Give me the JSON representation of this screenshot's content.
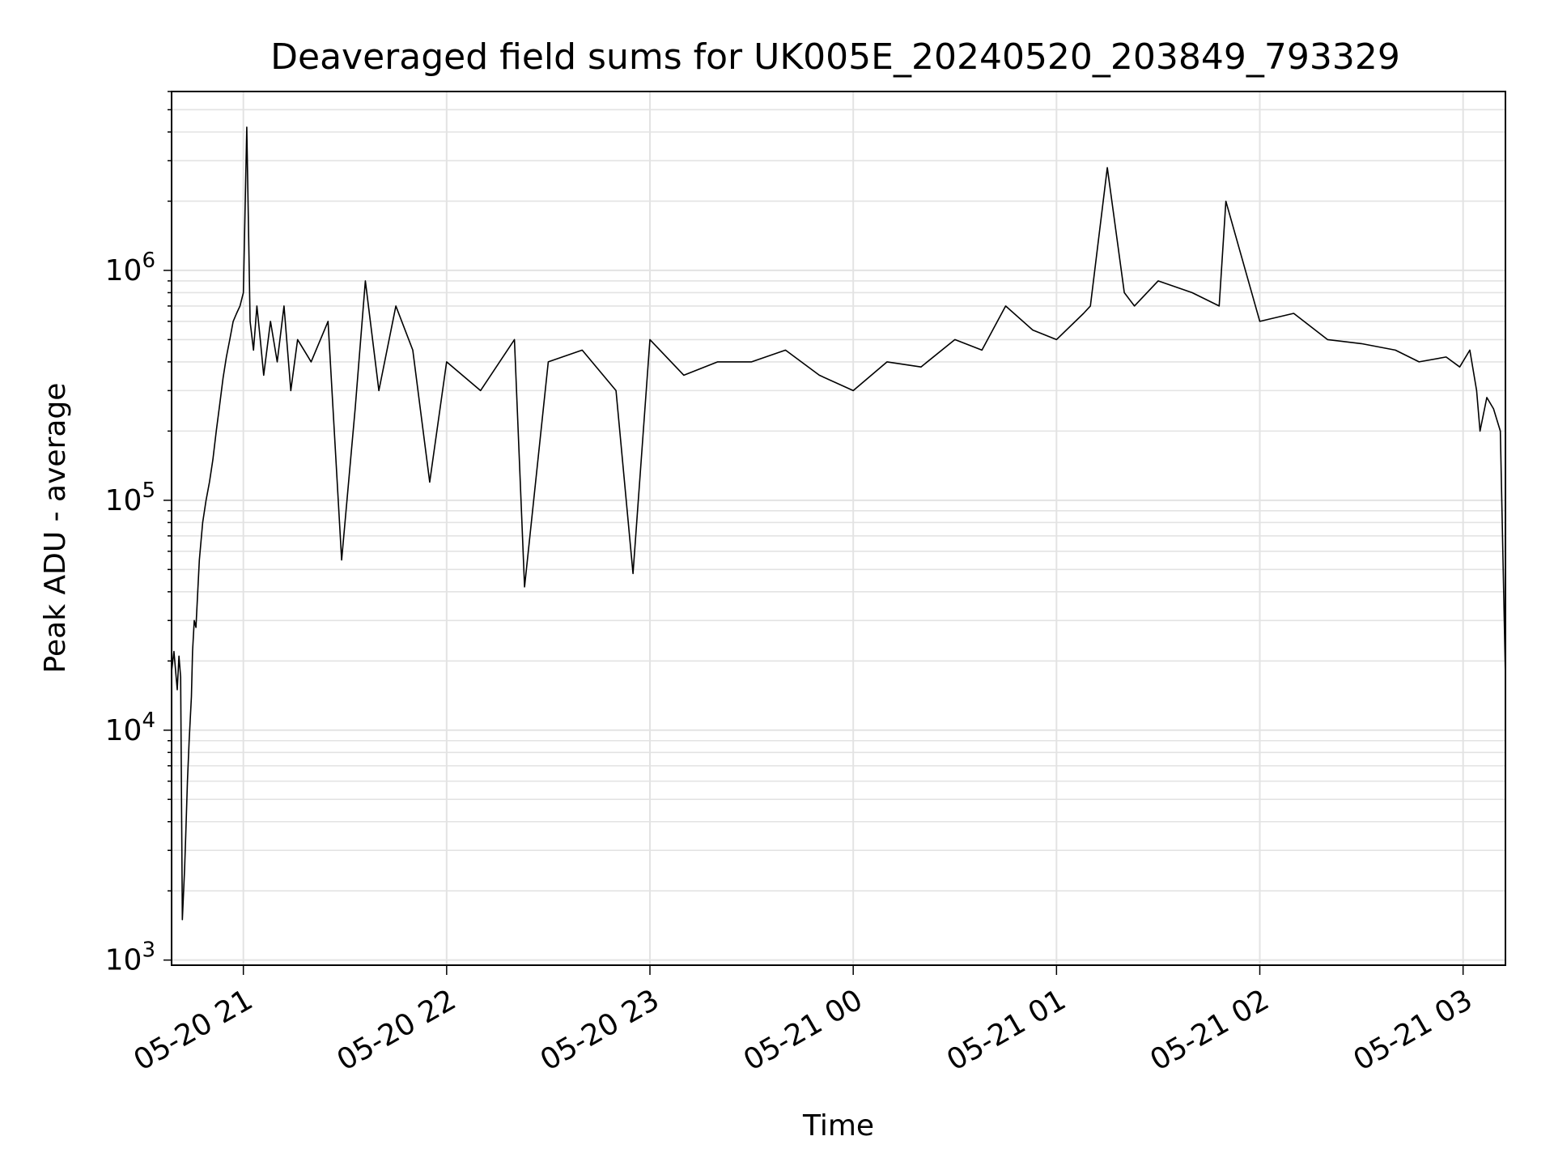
{
  "chart_data": {
    "type": "line",
    "title": "Deaveraged field sums for UK005E_20240520_203849_793329",
    "xlabel": "Time",
    "ylabel": "Peak ADU - average",
    "yscale": "log",
    "ylim": [
      950,
      6000000
    ],
    "xlim": [
      "2024-05-20 20:38:49",
      "2024-05-21 03:12:30"
    ],
    "grid": true,
    "line_color": "#000000",
    "x_ticks": [
      {
        "t": "2024-05-20 21:00",
        "label": "05-20 21"
      },
      {
        "t": "2024-05-20 22:00",
        "label": "05-20 22"
      },
      {
        "t": "2024-05-20 23:00",
        "label": "05-20 23"
      },
      {
        "t": "2024-05-21 00:00",
        "label": "05-21 00"
      },
      {
        "t": "2024-05-21 01:00",
        "label": "05-21 01"
      },
      {
        "t": "2024-05-21 02:00",
        "label": "05-21 02"
      },
      {
        "t": "2024-05-21 03:00",
        "label": "05-21 03"
      }
    ],
    "y_ticks": [
      {
        "value": 1000,
        "base": "10",
        "exp": "3"
      },
      {
        "value": 10000,
        "base": "10",
        "exp": "4"
      },
      {
        "value": 100000,
        "base": "10",
        "exp": "5"
      },
      {
        "value": 1000000,
        "base": "10",
        "exp": "6"
      }
    ],
    "series": [
      {
        "x": [
          "2024-05-20 20:38:49",
          "2024-05-20 20:39:30",
          "2024-05-20 20:40:30",
          "2024-05-20 20:41:00",
          "2024-05-20 20:41:30",
          "2024-05-20 20:42:00",
          "2024-05-20 20:42:40",
          "2024-05-20 20:43:00",
          "2024-05-20 20:43:30",
          "2024-05-20 20:44:00",
          "2024-05-20 20:44:40",
          "2024-05-20 20:45:00",
          "2024-05-20 20:45:30",
          "2024-05-20 20:46:00",
          "2024-05-20 20:47:00",
          "2024-05-20 20:48:00",
          "2024-05-20 20:49:00",
          "2024-05-20 20:50:00",
          "2024-05-20 20:51:00",
          "2024-05-20 20:52:00",
          "2024-05-20 20:53:00",
          "2024-05-20 20:54:00",
          "2024-05-20 20:55:00",
          "2024-05-20 20:56:00",
          "2024-05-20 20:57:00",
          "2024-05-20 20:58:00",
          "2024-05-20 20:59:00",
          "2024-05-20 21:00:00",
          "2024-05-20 21:01:00",
          "2024-05-20 21:02:00",
          "2024-05-20 21:03:00",
          "2024-05-20 21:04:00",
          "2024-05-20 21:05:00",
          "2024-05-20 21:06:00",
          "2024-05-20 21:08:00",
          "2024-05-20 21:10:00",
          "2024-05-20 21:12:00",
          "2024-05-20 21:14:00",
          "2024-05-20 21:16:00",
          "2024-05-20 21:20:00",
          "2024-05-20 21:25:00",
          "2024-05-20 21:29:00",
          "2024-05-20 21:33:00",
          "2024-05-20 21:36:00",
          "2024-05-20 21:40:00",
          "2024-05-20 21:45:00",
          "2024-05-20 21:50:00",
          "2024-05-20 21:55:00",
          "2024-05-20 22:00:00",
          "2024-05-20 22:10:00",
          "2024-05-20 22:20:00",
          "2024-05-20 22:23:00",
          "2024-05-20 22:30:00",
          "2024-05-20 22:40:00",
          "2024-05-20 22:50:00",
          "2024-05-20 22:55:00",
          "2024-05-20 23:00:00",
          "2024-05-20 23:10:00",
          "2024-05-20 23:20:00",
          "2024-05-20 23:30:00",
          "2024-05-20 23:40:00",
          "2024-05-20 23:50:00",
          "2024-05-21 00:00:00",
          "2024-05-21 00:10:00",
          "2024-05-21 00:20:00",
          "2024-05-21 00:30:00",
          "2024-05-21 00:38:00",
          "2024-05-21 00:45:00",
          "2024-05-21 00:53:00",
          "2024-05-21 01:00:00",
          "2024-05-21 01:08:00",
          "2024-05-21 01:10:00",
          "2024-05-21 01:15:00",
          "2024-05-21 01:20:00",
          "2024-05-21 01:23:00",
          "2024-05-21 01:30:00",
          "2024-05-21 01:40:00",
          "2024-05-21 01:48:00",
          "2024-05-21 01:50:00",
          "2024-05-21 02:00:00",
          "2024-05-21 02:10:00",
          "2024-05-21 02:20:00",
          "2024-05-21 02:30:00",
          "2024-05-21 02:40:00",
          "2024-05-21 02:47:00",
          "2024-05-21 02:55:00",
          "2024-05-21 02:59:00",
          "2024-05-21 03:02:00",
          "2024-05-21 03:04:00",
          "2024-05-21 03:05:00",
          "2024-05-21 03:07:00",
          "2024-05-21 03:09:00",
          "2024-05-21 03:11:00",
          "2024-05-21 03:12:30"
        ],
        "y": [
          18000,
          22000,
          15000,
          21000,
          17000,
          1500,
          2500,
          3500,
          6000,
          9000,
          14000,
          22000,
          30000,
          28000,
          55000,
          80000,
          100000,
          120000,
          150000,
          200000,
          260000,
          340000,
          420000,
          500000,
          600000,
          650000,
          700000,
          800000,
          4200000,
          600000,
          450000,
          700000,
          500000,
          350000,
          600000,
          400000,
          700000,
          300000,
          500000,
          400000,
          600000,
          55000,
          250000,
          900000,
          300000,
          700000,
          450000,
          120000,
          400000,
          300000,
          500000,
          42000,
          400000,
          450000,
          300000,
          48000,
          500000,
          350000,
          400000,
          400000,
          450000,
          350000,
          300000,
          400000,
          380000,
          500000,
          450000,
          700000,
          550000,
          500000,
          650000,
          700000,
          2800000,
          800000,
          700000,
          900000,
          800000,
          700000,
          2000000,
          600000,
          650000,
          500000,
          480000,
          450000,
          400000,
          420000,
          380000,
          450000,
          300000,
          200000,
          280000,
          250000,
          200000,
          17000
        ]
      }
    ]
  }
}
